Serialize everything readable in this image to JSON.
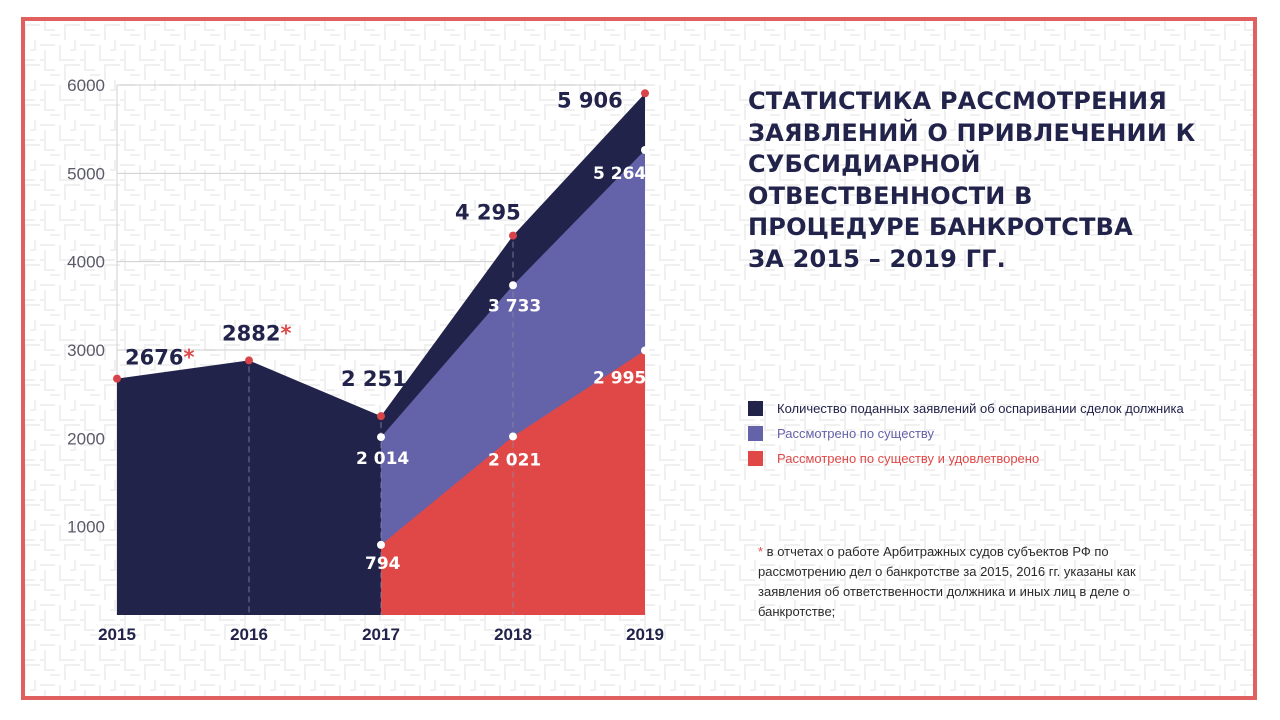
{
  "colors": {
    "frame": "#e06060",
    "navy": "#22234a",
    "purple": "#6462a8",
    "red": "#e04848",
    "grid": "#cfcfcf",
    "axis_text": "#5a5a6a"
  },
  "title_lines": [
    "СТАТИСТИКА РАССМОТРЕНИЯ",
    "ЗАЯВЛЕНИЙ О ПРИВЛЕЧЕНИИ К",
    "СУБСИДИАРНОЙ",
    "ОТВЕСТВЕННОСТИ В",
    "ПРОЦЕДУРЕ БАНКРОТСТВА",
    "ЗА 2015 – 2019 ГГ."
  ],
  "legend": [
    {
      "label": "Количество поданных заявлений об оспаривании сделок должника",
      "color": "#22234a"
    },
    {
      "label": "Рассмотрено по существу",
      "color": "#6462a8"
    },
    {
      "label": "Рассмотрено по существу и удовлетворено",
      "color": "#e04848"
    }
  ],
  "footnote": {
    "star": "*",
    "text": " в отчетах о работе Арбитражных судов субъектов РФ по рассмотрению дел о банкротстве за 2015, 2016 гг. указаны как заявления об ответственности должника и иных лиц в деле о банкротстве;"
  },
  "chart_data": {
    "type": "area",
    "categories": [
      "2015",
      "2016",
      "2017",
      "2018",
      "2019"
    ],
    "y_ticks": [
      "1000",
      "2000",
      "3000",
      "4000",
      "5000",
      "6000"
    ],
    "ylim": [
      0,
      6000
    ],
    "series": [
      {
        "name": "Количество поданных заявлений об оспаривании сделок должника",
        "color": "#22234a",
        "values": [
          2676,
          2882,
          2251,
          4295,
          5906
        ],
        "labels": [
          "2676",
          "2882",
          "2 251",
          "4 295",
          "5 906"
        ],
        "label_stars": [
          true,
          true,
          false,
          false,
          false
        ]
      },
      {
        "name": "Рассмотрено по существу",
        "color": "#6462a8",
        "values": [
          null,
          null,
          2014,
          3733,
          5264
        ],
        "labels": [
          "",
          "",
          "2 014",
          "3 733",
          "5 264"
        ]
      },
      {
        "name": "Рассмотрено по существу и удовлетворено",
        "color": "#e04848",
        "values": [
          null,
          null,
          794,
          2021,
          2995
        ],
        "labels": [
          "",
          "",
          "794",
          "2 021",
          "2 995"
        ]
      }
    ]
  }
}
